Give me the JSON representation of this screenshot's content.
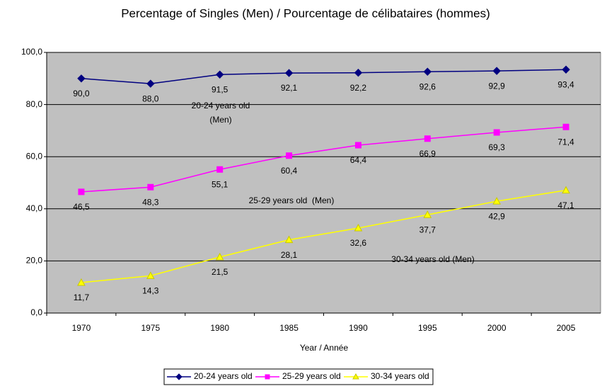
{
  "chart_data": {
    "type": "line",
    "title": "Percentage of Singles (Men) / Pourcentage de célibataires (hommes)",
    "x_label": "Year / Année",
    "categories": [
      "1970",
      "1975",
      "1980",
      "1985",
      "1990",
      "1995",
      "2000",
      "2005"
    ],
    "series": [
      {
        "name": "20-24 years old",
        "color": "#000080",
        "marker": "diamond",
        "values": [
          90.0,
          88.0,
          91.5,
          92.1,
          92.2,
          92.6,
          92.9,
          93.4
        ],
        "value_labels": [
          "90,0",
          "88,0",
          "91,5",
          "92,1",
          "92,2",
          "92,6",
          "92,9",
          "93,4"
        ]
      },
      {
        "name": "25-29 years old",
        "color": "#ff00ff",
        "marker": "square",
        "values": [
          46.5,
          48.3,
          55.1,
          60.4,
          64.4,
          66.9,
          69.3,
          71.4
        ],
        "value_labels": [
          "46,5",
          "48,3",
          "55,1",
          "60,4",
          "64,4",
          "66,9",
          "69,3",
          "71,4"
        ]
      },
      {
        "name": "30-34 years old",
        "color": "#ffff00",
        "marker": "triangle",
        "values": [
          11.7,
          14.3,
          21.5,
          28.1,
          32.6,
          37.7,
          42.9,
          47.1
        ],
        "value_labels": [
          "11,7",
          "14,3",
          "21,5",
          "28,1",
          "32,6",
          "37,7",
          "42,9",
          "47,1"
        ]
      }
    ],
    "annotations": [
      "20-24 years old",
      "(Men)",
      "25-29 years old  (Men)",
      "30-34 years old (Men)"
    ],
    "ylim": [
      0,
      100
    ],
    "yticks": [
      {
        "value": 0,
        "label": "0,0"
      },
      {
        "value": 20,
        "label": "20,0"
      },
      {
        "value": 40,
        "label": "40,0"
      },
      {
        "value": 60,
        "label": "60,0"
      },
      {
        "value": 80,
        "label": "80,0"
      },
      {
        "value": 100,
        "label": "100,0"
      }
    ],
    "grid": true,
    "legend": "bottom",
    "plot_background": "#c0c0c0"
  }
}
